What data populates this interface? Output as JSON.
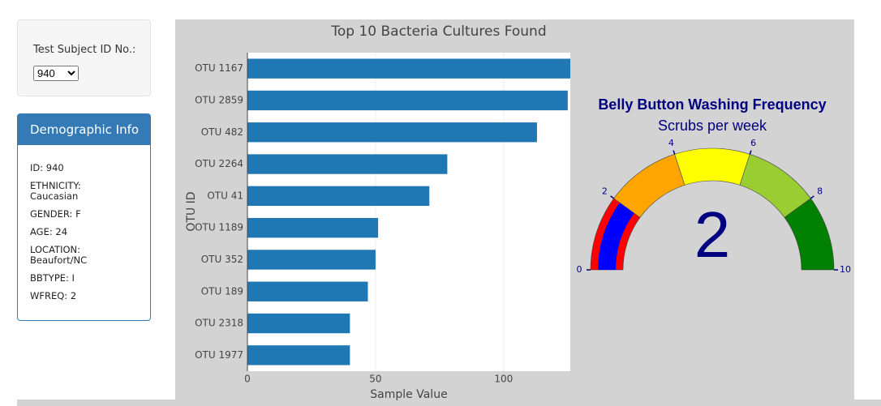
{
  "selector": {
    "label": "Test Subject ID No.:",
    "selected": "940"
  },
  "demographics": {
    "title": "Demographic Info",
    "items": [
      "ID: 940",
      "ETHNICITY: Caucasian",
      "GENDER: F",
      "AGE: 24",
      "LOCATION: Beaufort/NC",
      "BBTYPE: I",
      "WFREQ: 2"
    ]
  },
  "chart_data": [
    {
      "type": "hbar",
      "title": "Top 10 Bacteria Cultures Found",
      "x_label": "Sample Value",
      "y_label": "OTU ID",
      "categories": [
        "OTU 1167",
        "OTU 2859",
        "OTU 482",
        "OTU 2264",
        "OTU 41",
        "OTU 1189",
        "OTU 352",
        "OTU 189",
        "OTU 2318",
        "OTU 1977"
      ],
      "values": [
        126,
        125,
        113,
        78,
        71,
        51,
        50,
        47,
        40,
        40
      ],
      "color": "#1f77b4",
      "xlim": [
        0,
        126
      ],
      "xticks": [
        0,
        50,
        100
      ],
      "grid": true
    },
    {
      "type": "gauge",
      "title": "Belly Button Washing Frequency",
      "subtitle": "Scrubs per week",
      "value": 2,
      "range": [
        0,
        10
      ],
      "ticks": [
        0,
        2,
        4,
        6,
        8,
        10
      ],
      "bar_color": "#0000ff",
      "steps": [
        {
          "range": [
            0,
            2
          ],
          "color": "#ff0000"
        },
        {
          "range": [
            2,
            4
          ],
          "color": "#ffa500"
        },
        {
          "range": [
            4,
            6
          ],
          "color": "#ffff00"
        },
        {
          "range": [
            6,
            8
          ],
          "color": "#9acd32"
        },
        {
          "range": [
            8,
            10
          ],
          "color": "#008000"
        }
      ]
    }
  ]
}
